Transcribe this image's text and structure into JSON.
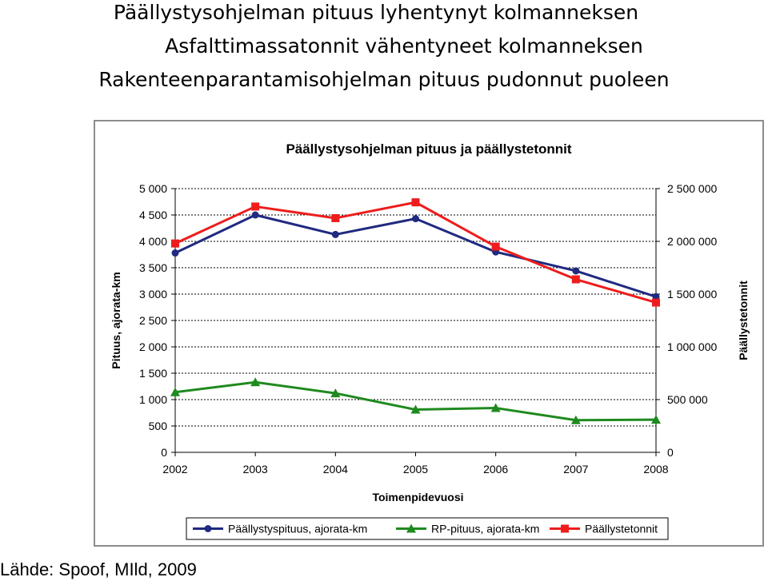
{
  "headlines": [
    "Päällystysohjelman pituus lyhentynyt kolmanneksen",
    "Asfalttimassatonnit vähentyneet kolmanneksen",
    "Rakenteenparantamisohjelman pituus pudonnut puoleen"
  ],
  "source": "Lähde: Spoof, MIld, 2009",
  "chart_data": {
    "type": "line",
    "title": "Päällystysohjelman pituus ja päällystetonnit",
    "xlabel": "Toimenpidevuosi",
    "ylabel": "Pituus, ajorata-km",
    "y2label": "Päällystetonnit",
    "x": [
      "2002",
      "2003",
      "2004",
      "2005",
      "2006",
      "2007",
      "2008"
    ],
    "ylim": [
      0,
      5000
    ],
    "y2lim": [
      0,
      2500000
    ],
    "yticks": [
      "0",
      "500",
      "1 000",
      "1 500",
      "2 000",
      "2 500",
      "3 000",
      "3 500",
      "4 000",
      "4 500",
      "5 000"
    ],
    "y2ticks": [
      "0",
      "500 000",
      "1 000 000",
      "1 500 000",
      "2 000 000",
      "2 500 000"
    ],
    "grid": true,
    "legend_position": "bottom",
    "series": [
      {
        "name": "Päällystyspituus, ajorata-km",
        "axis": "left",
        "color": "#1f2a80",
        "marker": "circle",
        "values": [
          3780,
          4500,
          4130,
          4430,
          3800,
          3440,
          2950
        ]
      },
      {
        "name": "RP-pituus, ajorata-km",
        "axis": "left",
        "color": "#1f8a1f",
        "marker": "triangle",
        "values": [
          1140,
          1330,
          1120,
          810,
          840,
          610,
          620
        ]
      },
      {
        "name": "Päällystetonnit",
        "axis": "right",
        "color": "#ee1c1c",
        "marker": "square",
        "values": [
          1980000,
          2330000,
          2220000,
          2370000,
          1950000,
          1640000,
          1420000
        ]
      }
    ]
  }
}
